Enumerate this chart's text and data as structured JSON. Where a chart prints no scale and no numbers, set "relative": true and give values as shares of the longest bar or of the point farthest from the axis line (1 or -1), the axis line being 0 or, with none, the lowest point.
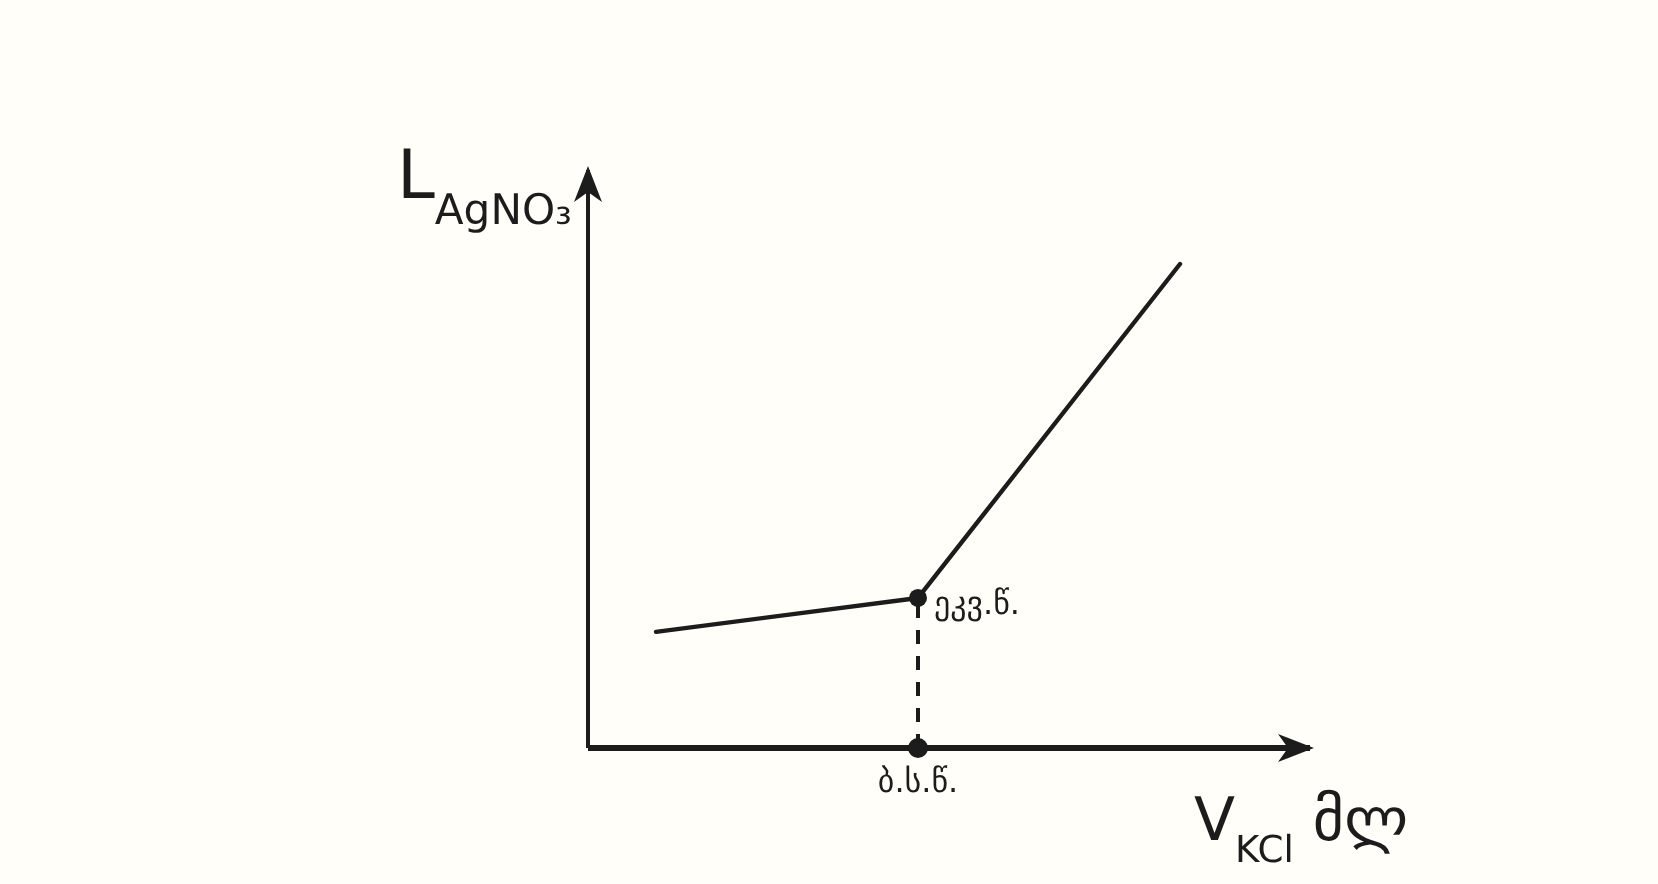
{
  "chart_data": {
    "type": "line",
    "relative": true,
    "xlabel": "V$_{KCl}$ მლ",
    "ylabel": "L$_{AgNO₃}$",
    "categories": [
      null,
      null,
      null
    ],
    "values": [
      0.24,
      0.31,
      1
    ],
    "color": "#1c1c1c",
    "line_style": "solid",
    "annotations": [
      "ეკვ.წ.",
      "ბ.ს.წ."
    ]
  }
}
